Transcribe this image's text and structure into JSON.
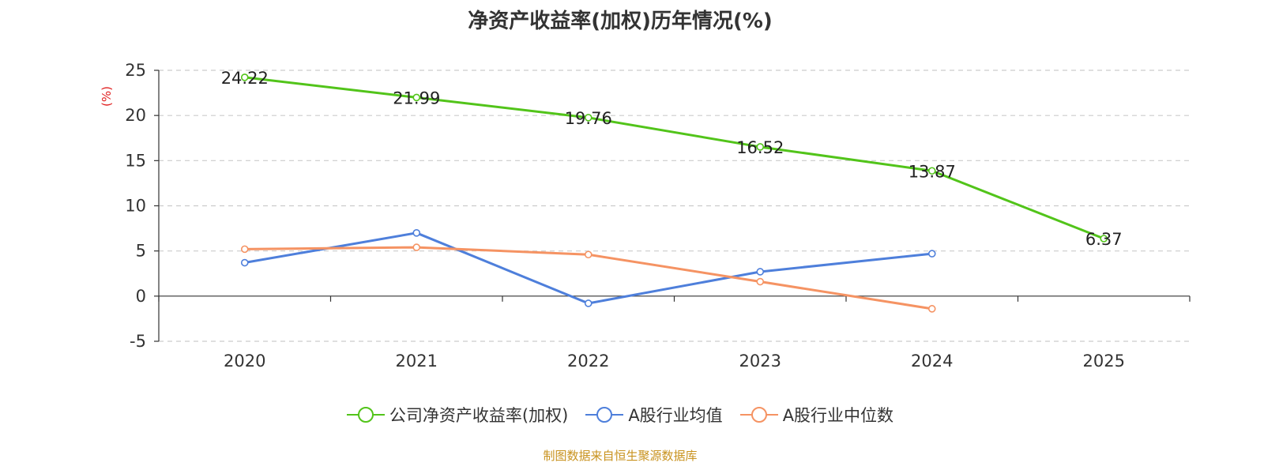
{
  "chart_data": {
    "type": "line",
    "title": "净资产收益率(加权)历年情况(%)",
    "ylabel": "(%)",
    "categories": [
      "2020",
      "2021",
      "2022",
      "2023",
      "2024",
      "2025"
    ],
    "ylim": [
      -5,
      25
    ],
    "yticks": [
      "-5",
      "0",
      "5",
      "10",
      "15",
      "20",
      "25"
    ],
    "grid": true,
    "legend_position": "bottom",
    "series": [
      {
        "name": "公司净资产收益率(加权)",
        "color": "#52c41a",
        "values": [
          24.22,
          21.99,
          19.76,
          16.52,
          13.87,
          6.37
        ],
        "labels": [
          "24.22",
          "21.99",
          "19.76",
          "16.52",
          "13.87",
          "6.37"
        ]
      },
      {
        "name": "A股行业均值",
        "color": "#4e7fdb",
        "values": [
          3.7,
          7.0,
          -0.8,
          2.7,
          4.7,
          null
        ]
      },
      {
        "name": "A股行业中位数",
        "color": "#f59363",
        "values": [
          5.2,
          5.4,
          4.6,
          1.6,
          -1.4,
          null
        ]
      }
    ]
  },
  "source": {
    "text": "制图数据来自恒生聚源数据库",
    "color": "#c8921e"
  },
  "colors": {
    "unit_label": "#e02020",
    "axis": "#333333",
    "grid": "#cccccc"
  }
}
